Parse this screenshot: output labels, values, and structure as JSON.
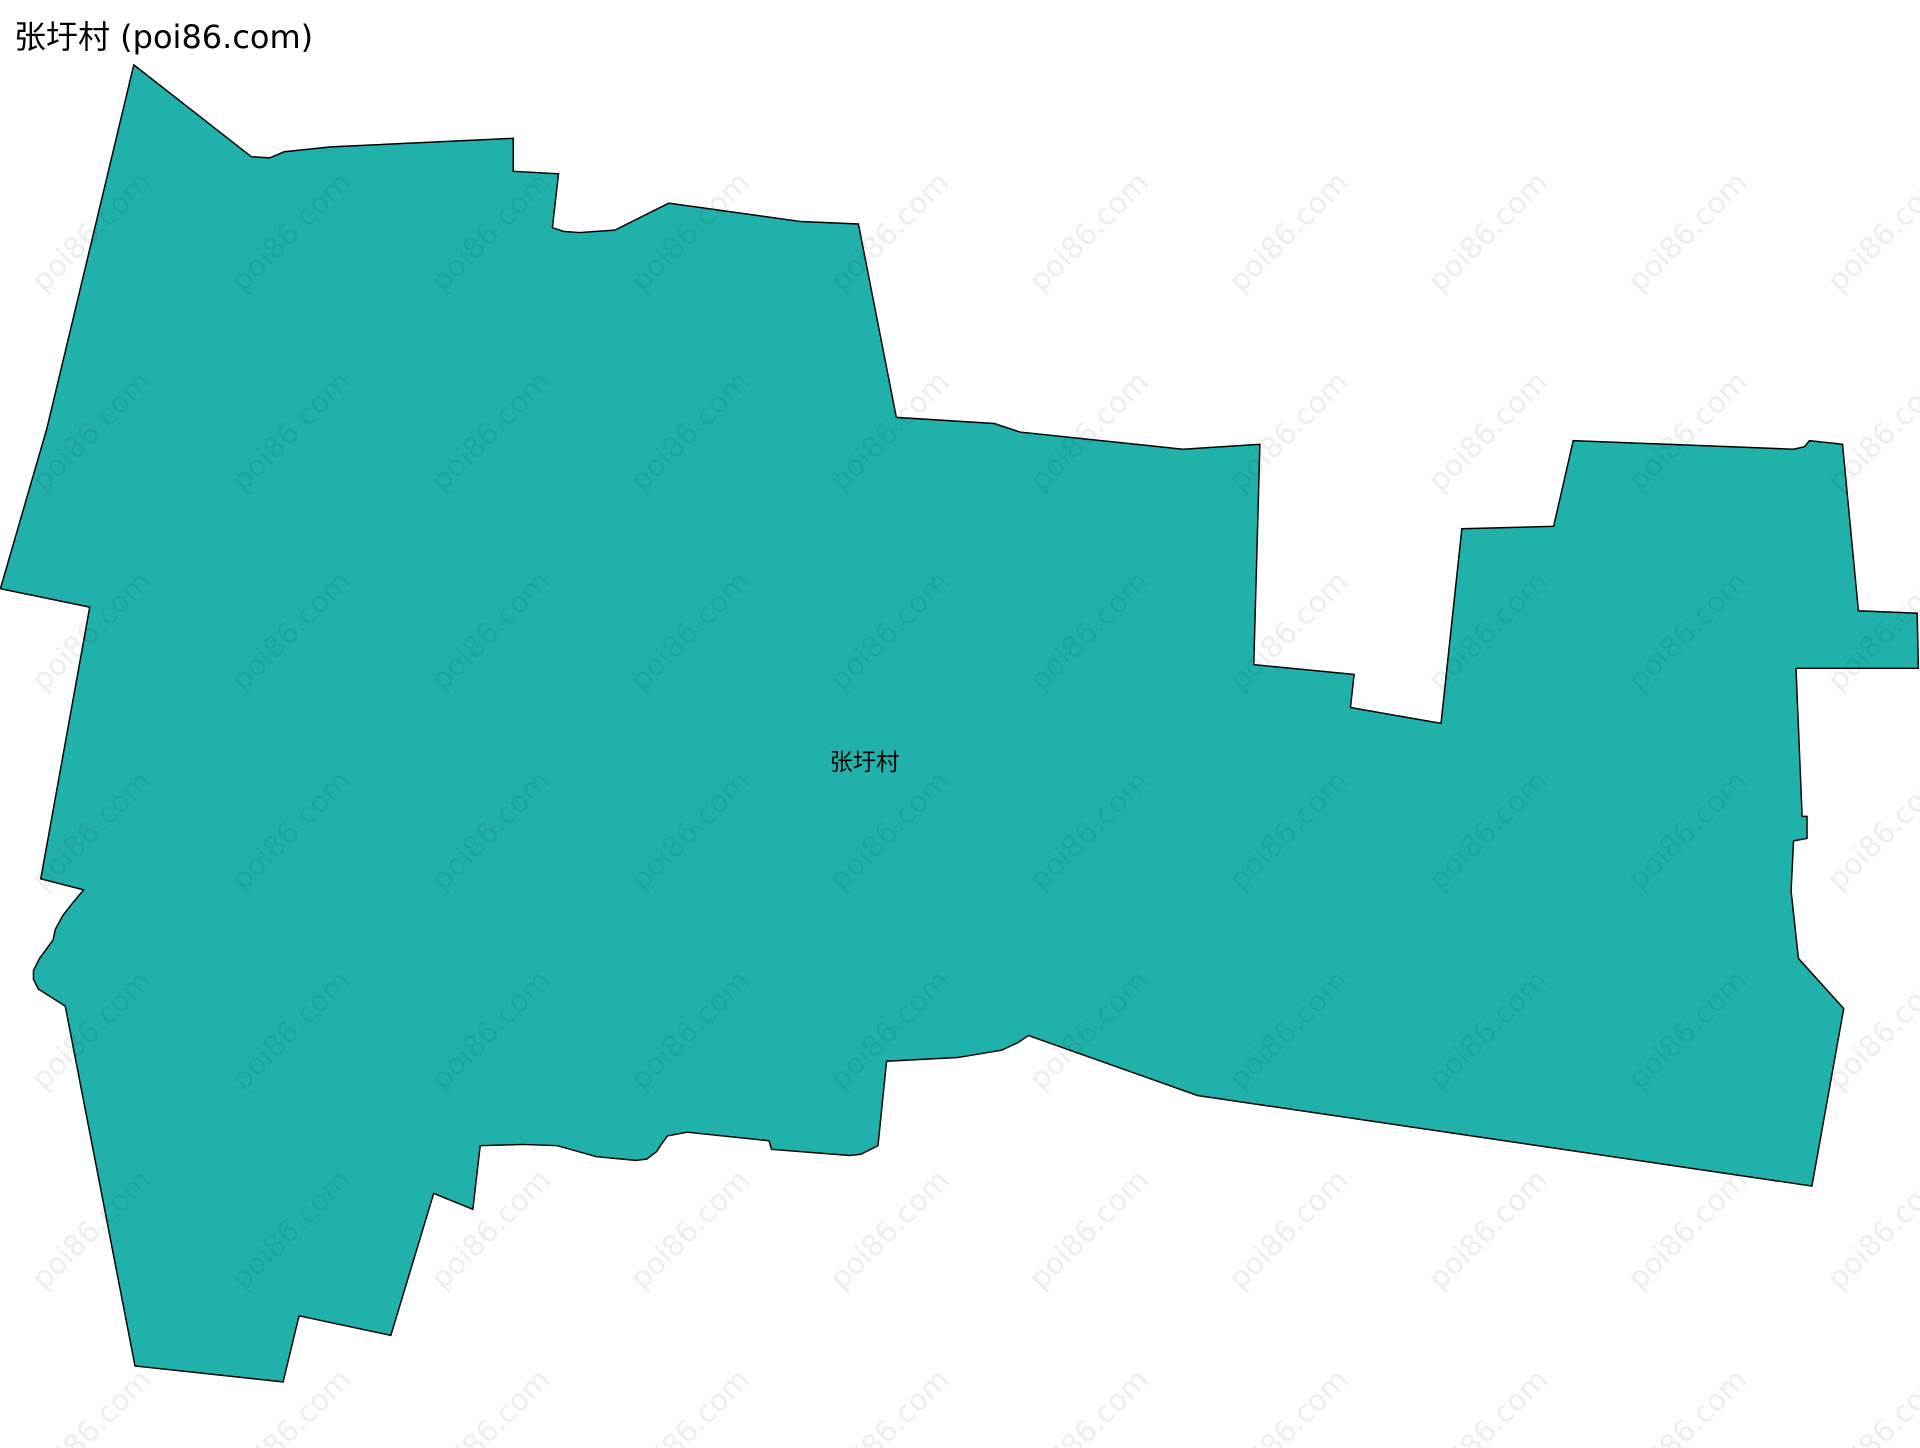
{
  "title": "张圩村 (poi86.com)",
  "map": {
    "region_label": "张圩村",
    "fill_color": "#20b2aa",
    "stroke_color": "#000000",
    "watermark": "poi86.com"
  }
}
